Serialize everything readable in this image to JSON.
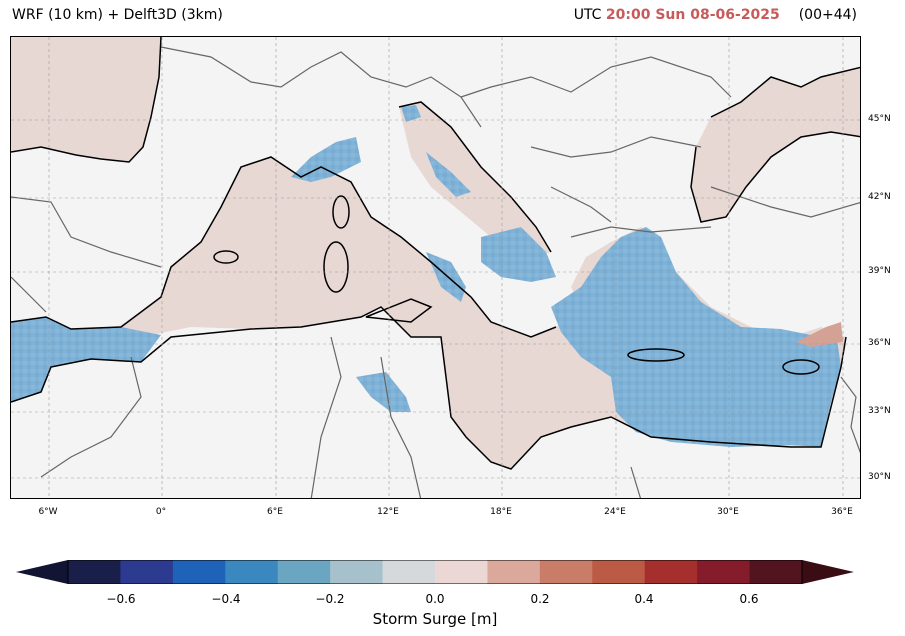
{
  "header": {
    "title_left": "WRF (10 km) + Delft3D (3km)",
    "utc_prefix": "UTC",
    "datetime": "20:00 Sun 08-06-2025",
    "lead_time": "(00+44)",
    "highlight_color": "#c85a5a"
  },
  "map": {
    "lon_labels": [
      "6°W",
      "0°",
      "6°E",
      "12°E",
      "18°E",
      "24°E",
      "30°E",
      "36°E"
    ],
    "lat_labels": [
      "45°N",
      "42°N",
      "39°N",
      "36°N",
      "33°N",
      "30°N"
    ],
    "colors": {
      "land": "#f4f4f4",
      "positive_surge": "#e8d8d4",
      "negative_surge": "#7fb2d6",
      "strong_positive": "#d4a294"
    }
  },
  "colorbar": {
    "ticks": [
      "−0.6",
      "−0.4",
      "−0.2",
      "0.0",
      "0.2",
      "0.4",
      "0.6"
    ],
    "label": "Storm Surge [m]",
    "colors": [
      "#1a1f4a",
      "#2c3a8f",
      "#1f63b8",
      "#3a88bf",
      "#6aa6c1",
      "#a6c1cb",
      "#d6d9db",
      "#ebd8d4",
      "#dba99b",
      "#c97d68",
      "#bb5a45",
      "#a42f2c",
      "#841c2b",
      "#52141f"
    ]
  }
}
